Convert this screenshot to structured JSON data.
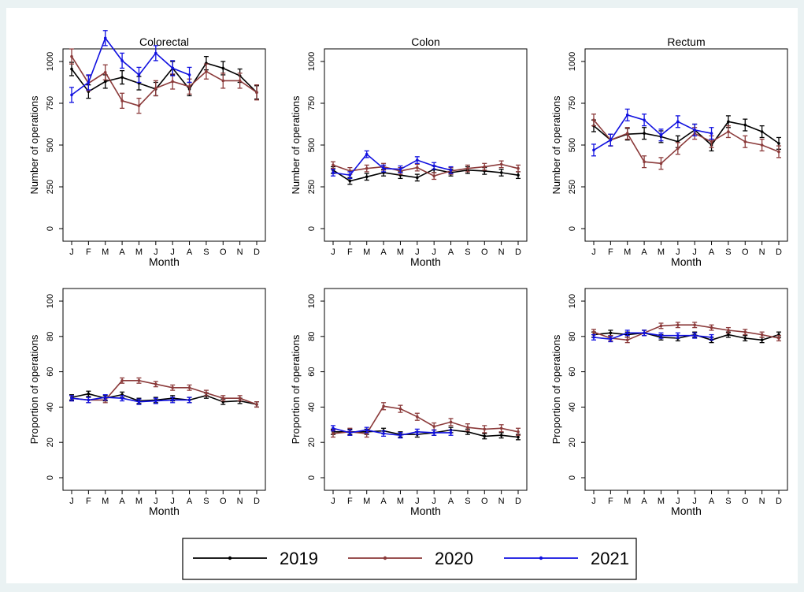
{
  "months": [
    "J",
    "F",
    "M",
    "A",
    "M",
    "J",
    "J",
    "A",
    "S",
    "O",
    "N",
    "D"
  ],
  "legend": [
    "2019",
    "2020",
    "2021"
  ],
  "colors": {
    "2019": "#000000",
    "2020": "#8b3a3a",
    "2021": "#1010e0"
  },
  "chart_data": [
    {
      "type": "line",
      "title": "Colorectal",
      "xlabel": "Month",
      "ylabel": "Number of operations",
      "ylim": [
        0,
        1000
      ],
      "yticks": [
        "0",
        "250",
        "500",
        "750",
        "1000"
      ],
      "yvals": [
        0,
        250,
        500,
        750,
        1000
      ],
      "series": [
        {
          "name": "2019",
          "values": [
            955,
            820,
            880,
            905,
            870,
            835,
            960,
            835,
            990,
            960,
            915,
            815
          ],
          "err": 40
        },
        {
          "name": "2020",
          "values": [
            1030,
            870,
            935,
            765,
            735,
            840,
            880,
            850,
            940,
            885,
            885,
            815
          ],
          "err": 45
        },
        {
          "name": "2021",
          "values": [
            800,
            875,
            1140,
            1005,
            920,
            1050,
            960,
            920,
            null,
            null,
            null,
            null
          ],
          "err": 45
        }
      ]
    },
    {
      "type": "line",
      "title": "Colon",
      "xlabel": "Month",
      "ylabel": "Number of operations",
      "ylim": [
        0,
        1000
      ],
      "yticks": [
        "0",
        "250",
        "500",
        "750",
        "1000"
      ],
      "yvals": [
        0,
        250,
        500,
        750,
        1000
      ],
      "series": [
        {
          "name": "2019",
          "values": [
            350,
            285,
            310,
            335,
            320,
            305,
            355,
            335,
            350,
            345,
            335,
            320
          ],
          "err": 20
        },
        {
          "name": "2020",
          "values": [
            380,
            345,
            360,
            370,
            345,
            365,
            315,
            345,
            360,
            370,
            385,
            360
          ],
          "err": 20
        },
        {
          "name": "2021",
          "values": [
            335,
            320,
            445,
            360,
            355,
            410,
            375,
            350,
            null,
            null,
            null,
            null
          ],
          "err": 20
        }
      ]
    },
    {
      "type": "line",
      "title": "Rectum",
      "xlabel": "Month",
      "ylabel": "Number of operations",
      "ylim": [
        0,
        1000
      ],
      "yticks": [
        "0",
        "250",
        "500",
        "750",
        "1000"
      ],
      "yvals": [
        0,
        250,
        500,
        750,
        1000
      ],
      "series": [
        {
          "name": "2019",
          "values": [
            615,
            530,
            565,
            570,
            550,
            520,
            590,
            500,
            640,
            620,
            580,
            510
          ],
          "err": 35
        },
        {
          "name": "2020",
          "values": [
            650,
            530,
            570,
            400,
            390,
            480,
            570,
            520,
            580,
            520,
            500,
            460
          ],
          "err": 35
        },
        {
          "name": "2021",
          "values": [
            470,
            530,
            680,
            650,
            560,
            640,
            590,
            570,
            null,
            null,
            null,
            null
          ],
          "err": 35
        }
      ]
    },
    {
      "type": "line",
      "title": "",
      "xlabel": "Month",
      "ylabel": "Proportion of operations",
      "ylim": [
        0,
        100
      ],
      "yticks": [
        "0",
        "20",
        "40",
        "60",
        "80",
        "100"
      ],
      "yvals": [
        0,
        20,
        40,
        60,
        80,
        100
      ],
      "series": [
        {
          "name": "2019",
          "values": [
            45.5,
            47.5,
            45,
            47,
            43.5,
            44,
            45,
            44,
            46.5,
            43,
            43.5,
            41.5
          ],
          "err": 1.5
        },
        {
          "name": "2020",
          "values": [
            45,
            44,
            44,
            55,
            55,
            53,
            51,
            51,
            48,
            45,
            45,
            41.5
          ],
          "err": 1.5
        },
        {
          "name": "2021",
          "values": [
            45,
            44,
            45.5,
            45,
            43,
            43.5,
            44,
            44,
            null,
            null,
            null,
            null
          ],
          "err": 1.5
        }
      ]
    },
    {
      "type": "line",
      "title": "",
      "xlabel": "Month",
      "ylabel": "Proportion of operations",
      "ylim": [
        0,
        100
      ],
      "yticks": [
        "0",
        "20",
        "40",
        "60",
        "80",
        "100"
      ],
      "yvals": [
        0,
        20,
        40,
        60,
        80,
        100
      ],
      "series": [
        {
          "name": "2019",
          "values": [
            26,
            26,
            26,
            26.5,
            24.5,
            24.5,
            25.5,
            27,
            26,
            23.5,
            24,
            23
          ],
          "err": 1.5
        },
        {
          "name": "2020",
          "values": [
            25,
            26,
            25,
            40.5,
            39,
            34.5,
            29,
            31.5,
            28.5,
            27.5,
            28,
            26
          ],
          "err": 2
        },
        {
          "name": "2021",
          "values": [
            28,
            25.5,
            27,
            25,
            24,
            26,
            25.5,
            25.5,
            null,
            null,
            null,
            null
          ],
          "err": 1.5
        }
      ]
    },
    {
      "type": "line",
      "title": "",
      "xlabel": "Month",
      "ylabel": "Proportion of operations",
      "ylim": [
        0,
        100
      ],
      "yticks": [
        "0",
        "20",
        "40",
        "60",
        "80",
        "100"
      ],
      "yvals": [
        0,
        20,
        40,
        60,
        80,
        100
      ],
      "series": [
        {
          "name": "2019",
          "values": [
            81,
            82,
            81,
            82,
            79.5,
            79,
            81,
            78,
            81,
            79,
            78,
            81
          ],
          "err": 1.5
        },
        {
          "name": "2020",
          "values": [
            82.5,
            79,
            78,
            82,
            86,
            86.5,
            86.5,
            85,
            83.5,
            82.5,
            81,
            79
          ],
          "err": 1.5
        },
        {
          "name": "2021",
          "values": [
            79.5,
            78.5,
            82,
            82,
            80.5,
            80.5,
            80.5,
            79.5,
            null,
            null,
            null,
            null
          ],
          "err": 1.5
        }
      ]
    }
  ]
}
